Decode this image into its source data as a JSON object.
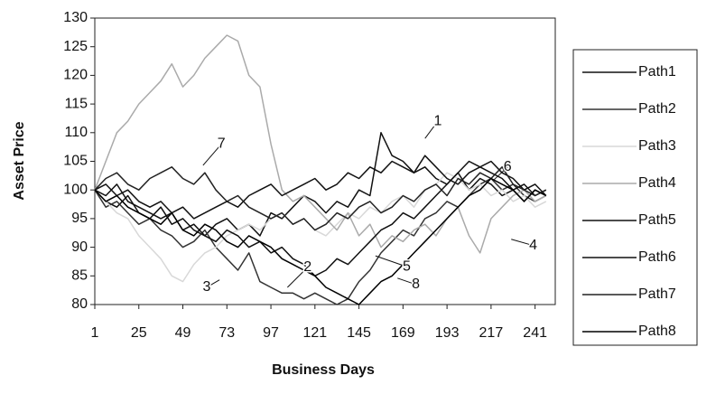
{
  "chart_data": {
    "type": "line",
    "y_label": "Asset Price",
    "x_label": "Business Days",
    "x": [
      1,
      7,
      13,
      19,
      25,
      31,
      37,
      43,
      49,
      55,
      61,
      67,
      73,
      79,
      85,
      91,
      97,
      103,
      109,
      115,
      121,
      127,
      133,
      139,
      145,
      151,
      157,
      163,
      169,
      175,
      181,
      187,
      193,
      199,
      205,
      211,
      217,
      223,
      229,
      235,
      241,
      247
    ],
    "xlim": [
      1,
      252
    ],
    "xticks": [
      1,
      25,
      49,
      73,
      97,
      121,
      145,
      169,
      193,
      217,
      241
    ],
    "ylim": [
      80,
      130
    ],
    "yticks": [
      80,
      85,
      90,
      95,
      100,
      105,
      110,
      115,
      120,
      125,
      130
    ],
    "legend": "right",
    "series": [
      {
        "name": "Path1",
        "color": "#111111",
        "values": [
          100,
          98,
          97,
          99,
          96,
          95,
          97,
          94,
          95,
          93,
          92,
          94,
          95,
          93,
          94,
          92,
          96,
          95,
          97,
          99,
          98,
          96,
          98,
          97,
          100,
          99,
          110,
          106,
          105,
          103,
          104,
          102,
          101,
          103,
          100,
          102,
          101,
          99,
          100,
          98,
          100,
          99
        ]
      },
      {
        "name": "Path2",
        "color": "#333333",
        "values": [
          100,
          97,
          98,
          96,
          94,
          95,
          93,
          92,
          90,
          91,
          93,
          90,
          88,
          86,
          89,
          84,
          83,
          82,
          82,
          81,
          82,
          81,
          80,
          81,
          84,
          86,
          89,
          91,
          93,
          92,
          95,
          96,
          98,
          97,
          99,
          101,
          102,
          100,
          101,
          99,
          98,
          99
        ]
      },
      {
        "name": "Path3",
        "color": "#d8d8d8",
        "values": [
          100,
          98,
          96,
          95,
          92,
          90,
          88,
          85,
          84,
          87,
          89,
          90,
          92,
          93,
          94,
          93,
          95,
          96,
          94,
          95,
          93,
          92,
          94,
          96,
          95,
          97,
          96,
          98,
          99,
          97,
          100,
          101,
          103,
          102,
          100,
          101,
          99,
          100,
          98,
          99,
          97,
          98
        ]
      },
      {
        "name": "Path4",
        "color": "#aaaaaa",
        "values": [
          100,
          105,
          110,
          112,
          115,
          117,
          119,
          122,
          118,
          120,
          123,
          125,
          127,
          126,
          120,
          118,
          108,
          100,
          98,
          99,
          97,
          95,
          93,
          96,
          92,
          94,
          90,
          92,
          91,
          93,
          94,
          92,
          95,
          97,
          92,
          89,
          95,
          97,
          99,
          100,
          98,
          99
        ]
      },
      {
        "name": "Path5",
        "color": "#111111",
        "values": [
          100,
          99,
          101,
          98,
          97,
          96,
          95,
          96,
          93,
          94,
          92,
          91,
          93,
          92,
          90,
          91,
          89,
          90,
          88,
          87,
          85,
          86,
          88,
          87,
          89,
          91,
          93,
          94,
          96,
          95,
          97,
          99,
          101,
          103,
          105,
          104,
          103,
          102,
          100,
          101,
          99,
          100
        ]
      },
      {
        "name": "Path6",
        "color": "#111111",
        "values": [
          100,
          101,
          99,
          100,
          98,
          97,
          98,
          96,
          97,
          95,
          96,
          97,
          98,
          97,
          99,
          100,
          101,
          99,
          100,
          101,
          102,
          100,
          101,
          103,
          102,
          104,
          103,
          105,
          104,
          103,
          106,
          104,
          102,
          101,
          103,
          104,
          105,
          103,
          102,
          100,
          101,
          99
        ]
      },
      {
        "name": "Path7",
        "color": "#222222",
        "values": [
          100,
          102,
          103,
          101,
          100,
          102,
          103,
          104,
          102,
          101,
          103,
          100,
          98,
          99,
          97,
          96,
          95,
          96,
          94,
          95,
          93,
          94,
          96,
          95,
          97,
          98,
          96,
          97,
          99,
          98,
          100,
          101,
          99,
          102,
          101,
          103,
          102,
          104,
          101,
          100,
          99,
          100
        ]
      },
      {
        "name": "Path8",
        "color": "#000000",
        "values": [
          100,
          98,
          99,
          97,
          96,
          95,
          94,
          96,
          93,
          92,
          94,
          93,
          91,
          90,
          92,
          91,
          90,
          88,
          87,
          86,
          85,
          83,
          82,
          81,
          80,
          82,
          84,
          85,
          87,
          89,
          91,
          93,
          95,
          97,
          99,
          100,
          102,
          101,
          100,
          98,
          100,
          99
        ]
      }
    ],
    "annotations": [
      {
        "text": "1",
        "x": 188,
        "y": 112,
        "to_x": 181,
        "to_y": 109
      },
      {
        "text": "2",
        "x": 117,
        "y": 86.5,
        "to_x": 106,
        "to_y": 83
      },
      {
        "text": "3",
        "x": 62,
        "y": 83,
        "to_x": 69,
        "to_y": 84.3
      },
      {
        "text": "4",
        "x": 240,
        "y": 90.3,
        "to_x": 228,
        "to_y": 91.4
      },
      {
        "text": "5",
        "x": 171,
        "y": 86.6,
        "to_x": 154,
        "to_y": 88.5
      },
      {
        "text": "6",
        "x": 226,
        "y": 104,
        "to_x": 218,
        "to_y": 101.6
      },
      {
        "text": "7",
        "x": 70,
        "y": 108,
        "to_x": 60,
        "to_y": 104.3
      },
      {
        "text": "8",
        "x": 176,
        "y": 83.5,
        "to_x": 166,
        "to_y": 84.6
      }
    ]
  }
}
